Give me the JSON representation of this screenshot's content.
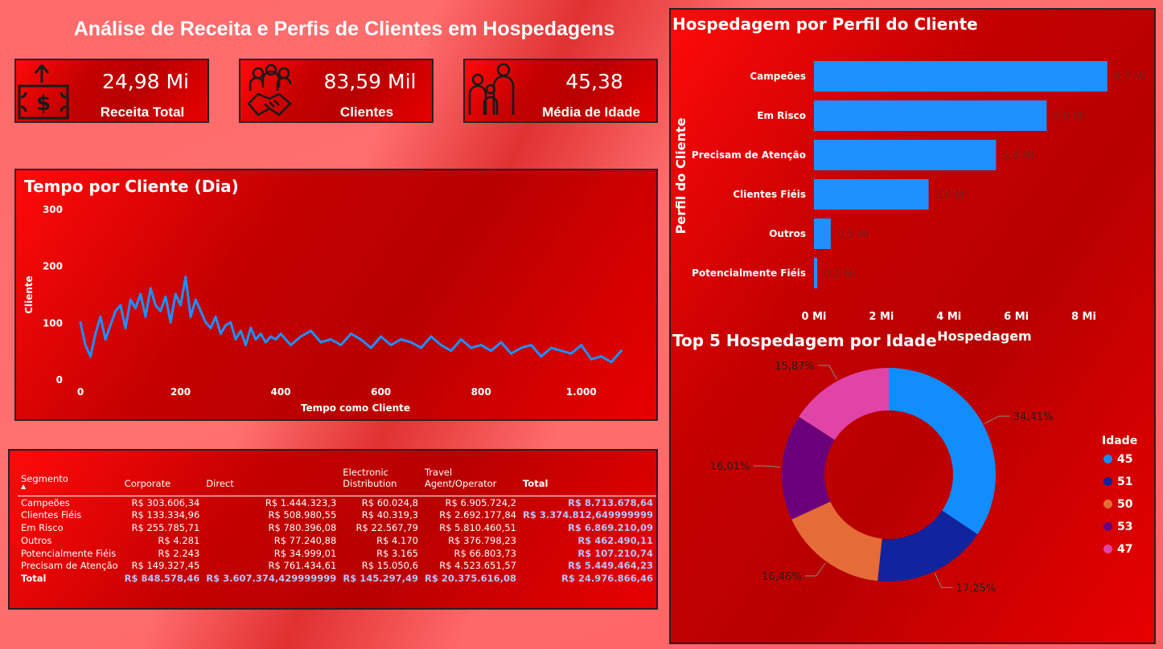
{
  "header": {
    "title": "Análise de Receita e Perfis de Clientes em Hospedagens"
  },
  "kpis": [
    {
      "value": "24,98 Mi",
      "label": "Receita Total",
      "icon": "money-bill-icon"
    },
    {
      "value": "83,59 Mil",
      "label": "Clientes",
      "icon": "handshake-people-icon"
    },
    {
      "value": "45,38",
      "label": "Média de Idade",
      "icon": "family-icon"
    }
  ],
  "line_panel": {
    "title": "Tempo por Cliente (Dia)"
  },
  "bar_panel": {
    "title": "Hospedagem por Perfil do Cliente"
  },
  "donut_panel": {
    "title": "Top 5 Hospedagem por Idade"
  },
  "matrix": {
    "headers": [
      "Segmento",
      "Corporate",
      "Direct",
      "Electronic Distribution",
      "Travel Agent/Operator",
      "Total"
    ],
    "rows": [
      [
        "Campeões",
        "R$ 303.606,34",
        "R$ 1.444.323,3",
        "R$ 60.024,8",
        "R$ 6.905.724,2",
        "R$ 8.713.678,64"
      ],
      [
        "Clientes Fiéis",
        "R$ 133.334,96",
        "R$ 508.980,55",
        "R$ 40.319,3",
        "R$ 2.692.177,84",
        "R$ 3.374.812,649999999"
      ],
      [
        "Em Risco",
        "R$ 255.785,71",
        "R$ 780.396,08",
        "R$ 22.567,79",
        "R$ 5.810.460,51",
        "R$ 6.869.210,09"
      ],
      [
        "Outros",
        "R$ 4.281",
        "R$ 77.240,88",
        "R$ 4.170",
        "R$ 376.798,23",
        "R$ 462.490,11"
      ],
      [
        "Potencialmente Fiéis",
        "R$ 2.243",
        "R$ 34.999,01",
        "R$ 3.165",
        "R$ 66.803,73",
        "R$ 107.210,74"
      ],
      [
        "Precisam de Atenção",
        "R$ 149.327,45",
        "R$ 761.434,61",
        "R$ 15.050,6",
        "R$ 4.523.651,57",
        "R$ 5.449.464,23"
      ]
    ],
    "total_row": [
      "Total",
      "R$ 848.578,46",
      "R$ 3.607.374,429999999",
      "R$ 145.297,49",
      "R$ 20.375.616,08",
      "R$ 24.976.866,46"
    ]
  },
  "chart_data": [
    {
      "type": "line",
      "title": "Tempo por Cliente (Dia)",
      "xlabel": "Tempo como Cliente",
      "ylabel": "Cliente",
      "xlim": [
        0,
        1100
      ],
      "ylim": [
        0,
        300
      ],
      "x_ticks": [
        0,
        200,
        400,
        600,
        800,
        1000
      ],
      "x_tick_labels": [
        "0",
        "200",
        "400",
        "600",
        "800",
        "1.000"
      ],
      "y_ticks": [
        0,
        100,
        200,
        300
      ],
      "color": "#1e90ff",
      "x": [
        0,
        10,
        20,
        30,
        40,
        50,
        60,
        70,
        80,
        90,
        100,
        110,
        120,
        130,
        140,
        150,
        160,
        170,
        180,
        190,
        200,
        210,
        220,
        230,
        240,
        250,
        260,
        270,
        280,
        290,
        300,
        310,
        320,
        330,
        340,
        350,
        360,
        370,
        380,
        390,
        400,
        420,
        440,
        460,
        480,
        500,
        520,
        540,
        560,
        580,
        600,
        620,
        640,
        660,
        680,
        700,
        720,
        740,
        760,
        780,
        800,
        820,
        840,
        860,
        880,
        900,
        920,
        940,
        960,
        980,
        1000,
        1020,
        1040,
        1060,
        1080
      ],
      "y": [
        100,
        60,
        40,
        80,
        110,
        70,
        95,
        120,
        130,
        90,
        140,
        125,
        150,
        110,
        160,
        130,
        120,
        145,
        100,
        150,
        130,
        180,
        110,
        140,
        120,
        100,
        90,
        110,
        80,
        95,
        100,
        70,
        85,
        60,
        90,
        70,
        80,
        65,
        75,
        70,
        80,
        60,
        75,
        85,
        65,
        70,
        60,
        80,
        70,
        55,
        75,
        60,
        70,
        65,
        55,
        75,
        60,
        50,
        70,
        55,
        60,
        50,
        65,
        45,
        55,
        60,
        40,
        55,
        50,
        45,
        60,
        35,
        40,
        30,
        50
      ]
    },
    {
      "type": "bar",
      "title": "Hospedagem por Perfil do Cliente",
      "orientation": "horizontal",
      "xlabel": "Hospedagem",
      "ylabel": "Perfil do Cliente",
      "categories": [
        "Campeões",
        "Em Risco",
        "Precisam de Atenção",
        "Clientes Fiéis",
        "Outros",
        "Potencialmente Fiéis"
      ],
      "values": [
        8.7,
        6.9,
        5.4,
        3.4,
        0.5,
        0.1
      ],
      "value_labels": [
        "8,7 Mi",
        "6,9 Mi",
        "5,4 Mi",
        "3,4 Mi",
        "0,5 Mi",
        "0,1 Mi"
      ],
      "x_ticks": [
        0,
        2,
        4,
        6,
        8
      ],
      "x_tick_labels": [
        "0 Mi",
        "2 Mi",
        "4 Mi",
        "6 Mi",
        "8 Mi"
      ],
      "xlim": [
        0,
        9.3
      ],
      "color": "#1e90ff"
    },
    {
      "type": "pie",
      "subtype": "donut",
      "title": "Top 5 Hospedagem por Idade",
      "legend_title": "Idade",
      "legend_position": "right",
      "categories": [
        "45",
        "51",
        "50",
        "53",
        "47"
      ],
      "values": [
        34.41,
        17.25,
        16.46,
        16.01,
        15.87
      ],
      "value_labels": [
        "34,41%",
        "17,25%",
        "16,46%",
        "16,01%",
        "15,87%"
      ],
      "colors": [
        "#118dff",
        "#12239e",
        "#e66c37",
        "#6b007b",
        "#e044a7"
      ]
    }
  ]
}
